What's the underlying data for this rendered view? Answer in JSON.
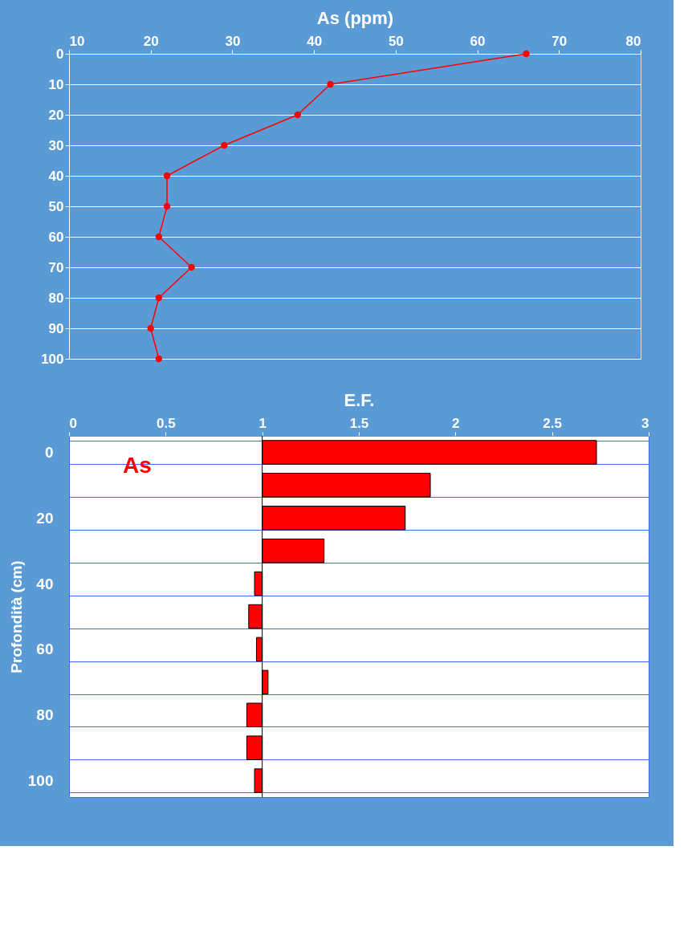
{
  "chart_data": [
    {
      "type": "line",
      "xlabel": "As (ppm)",
      "x": [
        66,
        42,
        38,
        29,
        22,
        22,
        21,
        25,
        21,
        20,
        21
      ],
      "values": [
        0,
        10,
        20,
        30,
        40,
        50,
        60,
        70,
        80,
        90,
        100
      ],
      "color": "#ff0000",
      "xlim": [
        10,
        80
      ],
      "xticks": [
        10,
        20,
        30,
        40,
        50,
        60,
        70,
        80
      ],
      "ylim": [
        100,
        0
      ],
      "yticks": [
        0,
        10,
        20,
        30,
        40,
        50,
        60,
        70,
        80,
        90,
        100
      ],
      "grid": "y",
      "marker": "circle",
      "line_style": "solid"
    },
    {
      "type": "bar",
      "orientation": "horizontal",
      "xlabel": "E.F.",
      "ylabel": "Profondità (cm)",
      "categories": [
        "0",
        null,
        "20",
        null,
        "40",
        null,
        "60",
        null,
        "80",
        null,
        "100"
      ],
      "base": [
        1,
        1,
        1,
        1,
        1,
        1,
        1,
        1,
        1,
        1,
        1
      ],
      "values": [
        1.73,
        0.87,
        0.74,
        0.32,
        -0.04,
        -0.07,
        -0.03,
        0.03,
        -0.08,
        -0.08,
        -0.04
      ],
      "color": "#ff0000",
      "xlim": [
        0,
        3
      ],
      "xticks": [
        0,
        0.5,
        1,
        1.5,
        2,
        2.5,
        3
      ],
      "grid": "y",
      "ref_lines": [
        {
          "axis": "x",
          "value": 1,
          "color": "#000000"
        }
      ],
      "annotations": [
        "As"
      ]
    }
  ]
}
